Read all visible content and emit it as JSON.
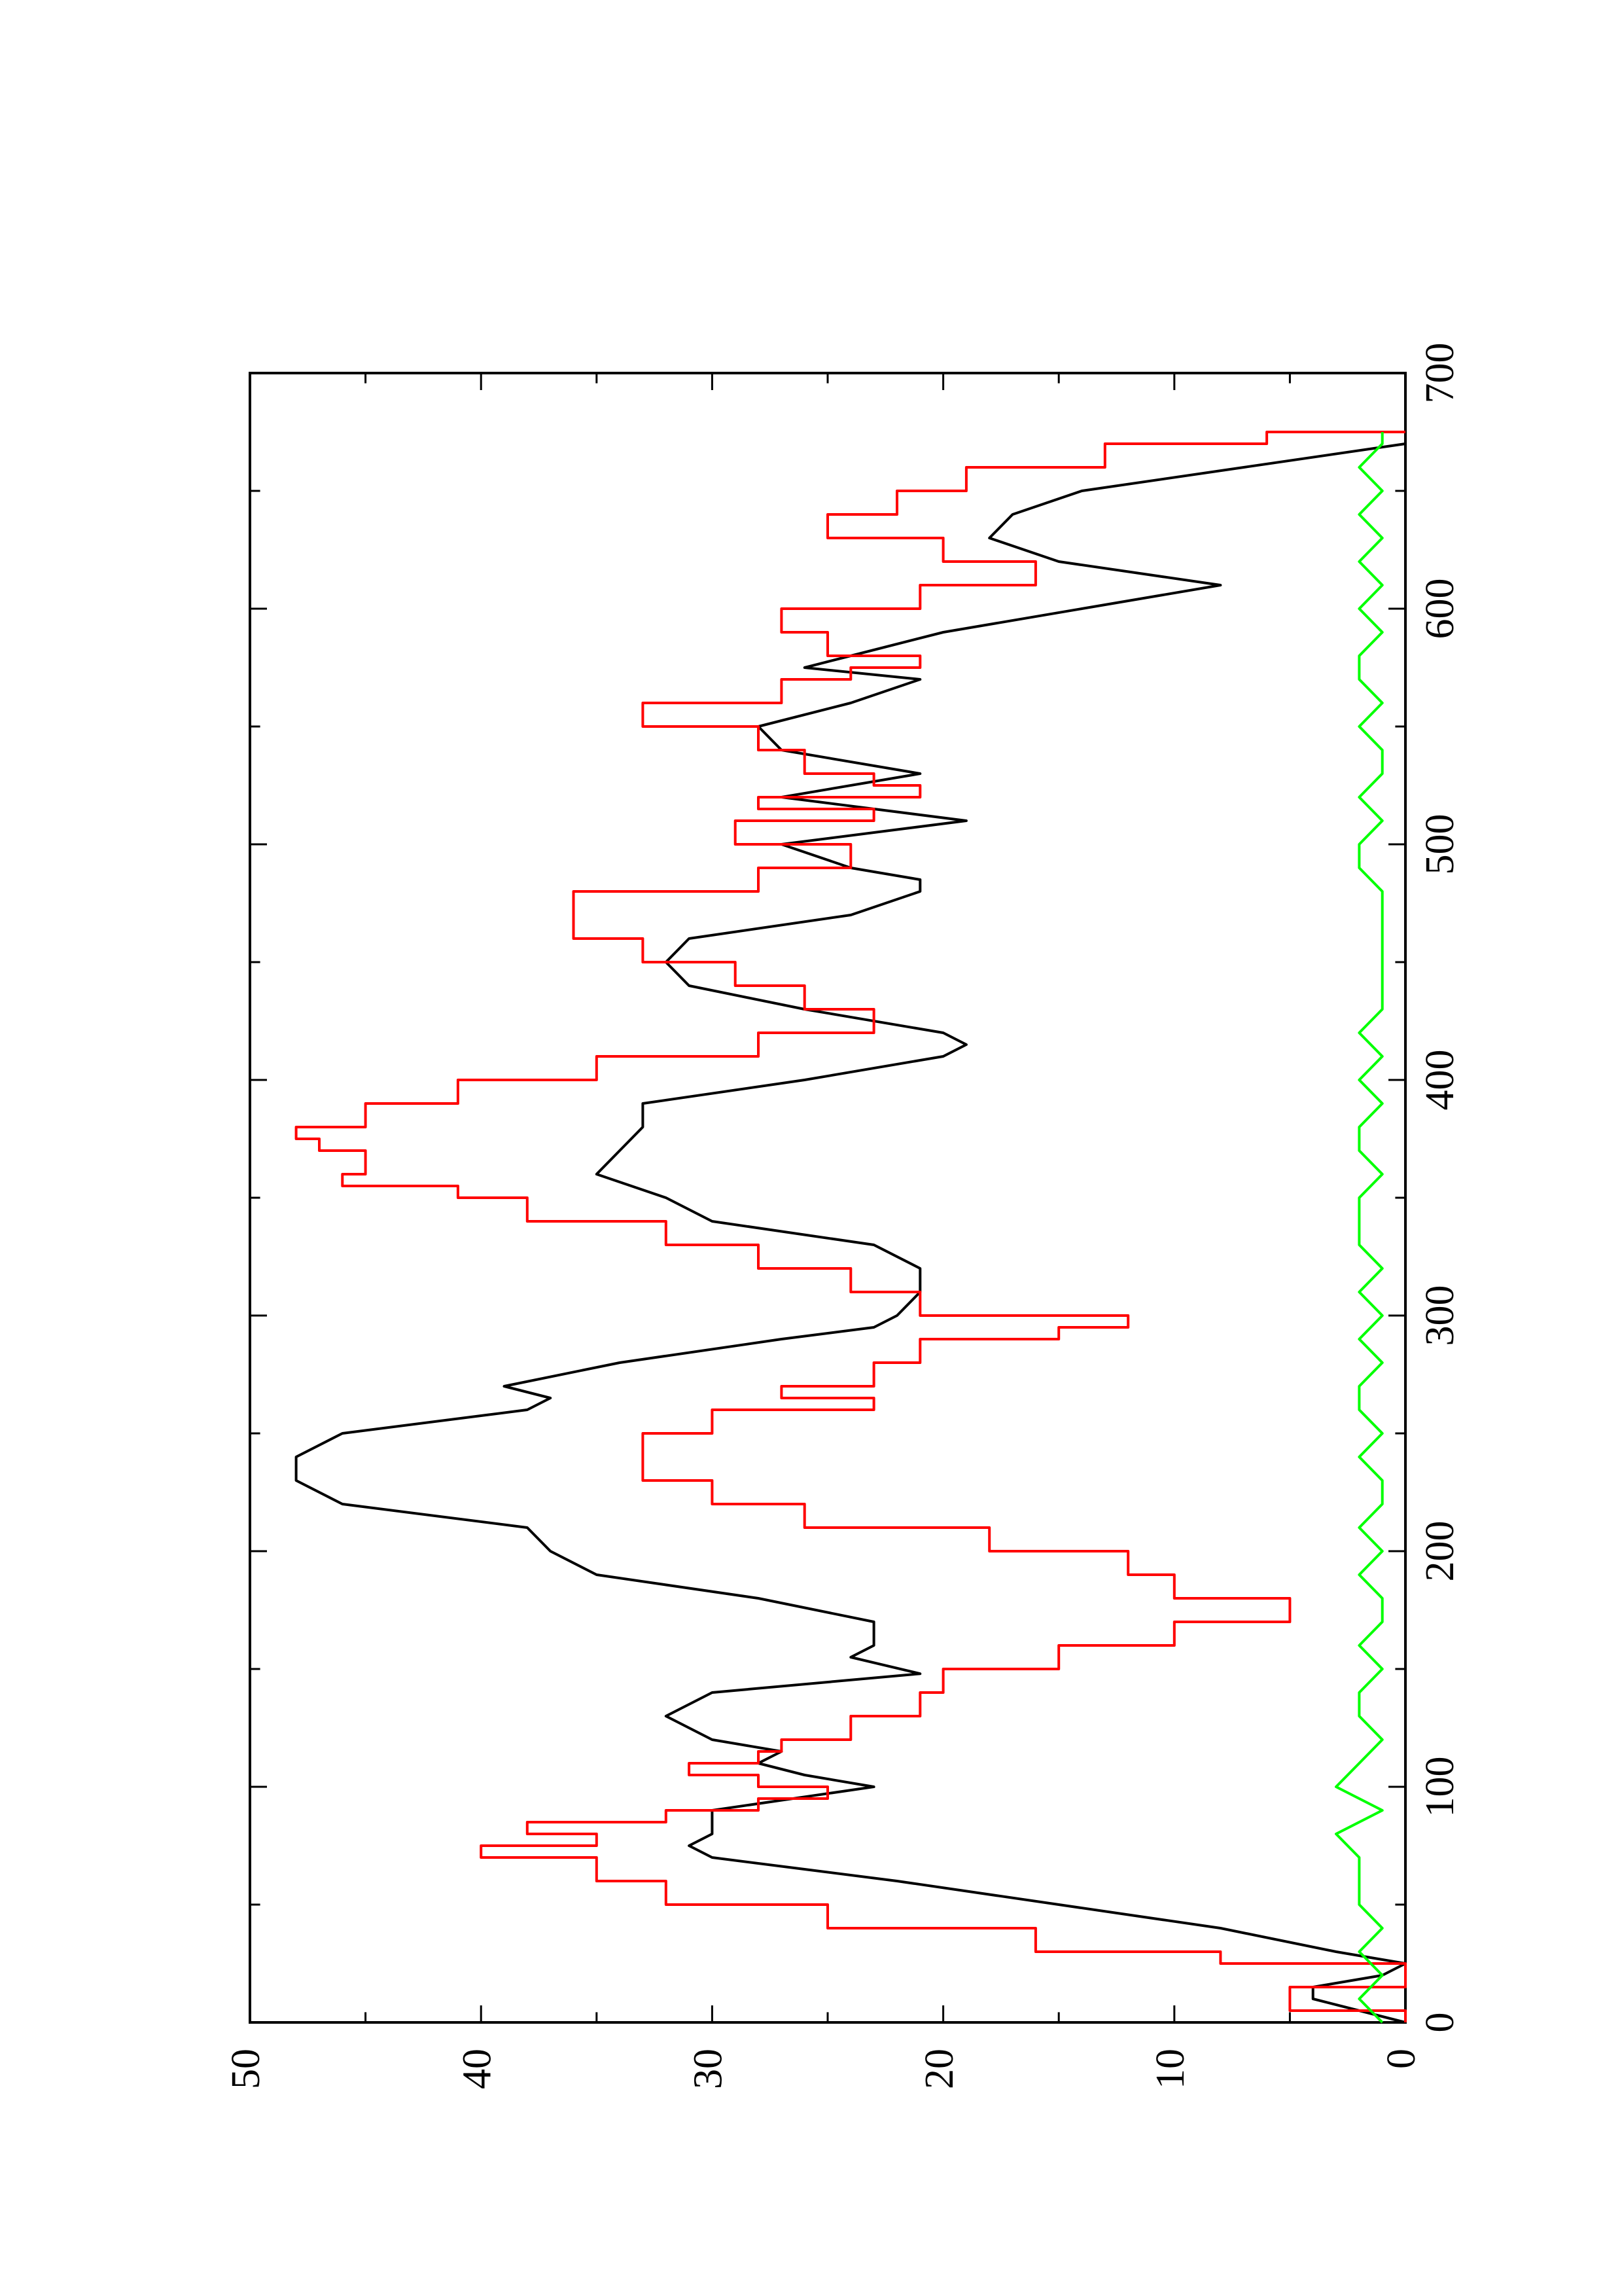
{
  "chart_data": {
    "type": "line",
    "orientation": "rotated 90 degrees counter-clockwise (page is landscape plot printed on portrait page)",
    "title": "",
    "xlabel": "",
    "ylabel": "",
    "xlim": [
      0,
      700
    ],
    "ylim": [
      0,
      50
    ],
    "x_ticks": [
      0,
      100,
      200,
      300,
      400,
      500,
      600,
      700
    ],
    "y_ticks": [
      0,
      10,
      20,
      30,
      40,
      50
    ],
    "x_tick_labels": [
      "0",
      "100",
      "200",
      "300",
      "400",
      "500",
      "600",
      "700"
    ],
    "y_tick_labels": [
      "0",
      "10",
      "20",
      "30",
      "40",
      "50"
    ],
    "grid": false,
    "legend": "none",
    "series": [
      {
        "color": "#000000",
        "style": "smooth",
        "x": [
          0,
          5,
          10,
          15,
          20,
          25,
          30,
          40,
          50,
          60,
          65,
          70,
          75,
          80,
          90,
          100,
          105,
          110,
          115,
          120,
          130,
          140,
          148,
          155,
          160,
          170,
          180,
          190,
          200,
          210,
          220,
          230,
          240,
          250,
          260,
          265,
          270,
          280,
          290,
          295,
          300,
          310,
          320,
          330,
          340,
          350,
          360,
          370,
          380,
          390,
          400,
          410,
          415,
          420,
          430,
          440,
          450,
          460,
          470,
          480,
          485,
          490,
          500,
          510,
          520,
          530,
          540,
          550,
          560,
          570,
          575,
          580,
          590,
          600,
          610,
          620,
          630,
          640,
          650,
          660,
          670,
          672,
          675
        ],
        "y": [
          0,
          2,
          4,
          4,
          1,
          0,
          3,
          8,
          15,
          22,
          26,
          30,
          31,
          30,
          30,
          23,
          26,
          28,
          27,
          30,
          32,
          30,
          21,
          24,
          23,
          23,
          28,
          35,
          37,
          38,
          46,
          48,
          48,
          46,
          38,
          37,
          39,
          34,
          27,
          23,
          22,
          21,
          21,
          23,
          30,
          32,
          35,
          34,
          33,
          33,
          26,
          20,
          19,
          20,
          26,
          31,
          32,
          31,
          24,
          21,
          21,
          24,
          27,
          19,
          27,
          21,
          27,
          28,
          24,
          21,
          26,
          24,
          20,
          14,
          8,
          15,
          18,
          17,
          14,
          7,
          0,
          0,
          0
        ]
      },
      {
        "color": "#ff0000",
        "style": "step",
        "x": [
          0,
          5,
          10,
          15,
          20,
          25,
          30,
          40,
          50,
          60,
          70,
          75,
          80,
          85,
          90,
          95,
          100,
          105,
          110,
          115,
          120,
          130,
          140,
          150,
          160,
          170,
          180,
          190,
          200,
          210,
          220,
          230,
          240,
          250,
          260,
          265,
          270,
          280,
          290,
          295,
          300,
          310,
          320,
          330,
          340,
          350,
          355,
          360,
          370,
          375,
          380,
          390,
          400,
          410,
          420,
          425,
          430,
          440,
          450,
          460,
          470,
          480,
          490,
          500,
          510,
          515,
          520,
          525,
          530,
          540,
          550,
          560,
          570,
          575,
          580,
          590,
          600,
          610,
          620,
          630,
          640,
          650,
          660,
          670,
          675
        ],
        "y": [
          0,
          5,
          5,
          0,
          0,
          8,
          16,
          25,
          32,
          35,
          40,
          35,
          38,
          32,
          28,
          25,
          28,
          31,
          28,
          27,
          24,
          21,
          20,
          15,
          10,
          5,
          10,
          12,
          18,
          26,
          30,
          33,
          33,
          30,
          23,
          27,
          23,
          21,
          15,
          12,
          21,
          24,
          28,
          32,
          38,
          41,
          46,
          45,
          47,
          48,
          45,
          41,
          35,
          28,
          23,
          23,
          26,
          29,
          33,
          36,
          36,
          28,
          24,
          29,
          23,
          28,
          21,
          23,
          26,
          28,
          33,
          27,
          24,
          21,
          25,
          27,
          21,
          16,
          20,
          25,
          22,
          19,
          13,
          6,
          0
        ]
      },
      {
        "color": "#00ff00",
        "style": "noise",
        "x": [
          0,
          10,
          20,
          30,
          40,
          50,
          60,
          70,
          80,
          90,
          100,
          110,
          120,
          130,
          140,
          150,
          160,
          170,
          180,
          190,
          200,
          210,
          220,
          230,
          240,
          250,
          260,
          270,
          280,
          290,
          300,
          310,
          320,
          330,
          340,
          350,
          360,
          370,
          380,
          390,
          400,
          410,
          420,
          430,
          440,
          450,
          460,
          470,
          480,
          490,
          500,
          510,
          520,
          530,
          540,
          550,
          560,
          570,
          580,
          590,
          600,
          610,
          620,
          630,
          640,
          650,
          660,
          670,
          675
        ],
        "y": [
          1,
          2,
          1,
          2,
          1,
          2,
          2,
          2,
          3,
          1,
          3,
          2,
          1,
          2,
          2,
          1,
          2,
          1,
          1,
          2,
          1,
          2,
          1,
          1,
          2,
          1,
          2,
          2,
          1,
          2,
          1,
          2,
          1,
          2,
          2,
          2,
          1,
          2,
          2,
          1,
          2,
          1,
          2,
          1,
          1,
          1,
          1,
          1,
          1,
          2,
          2,
          1,
          2,
          1,
          1,
          2,
          1,
          2,
          2,
          1,
          2,
          1,
          2,
          1,
          2,
          1,
          2,
          1,
          1
        ]
      }
    ]
  }
}
